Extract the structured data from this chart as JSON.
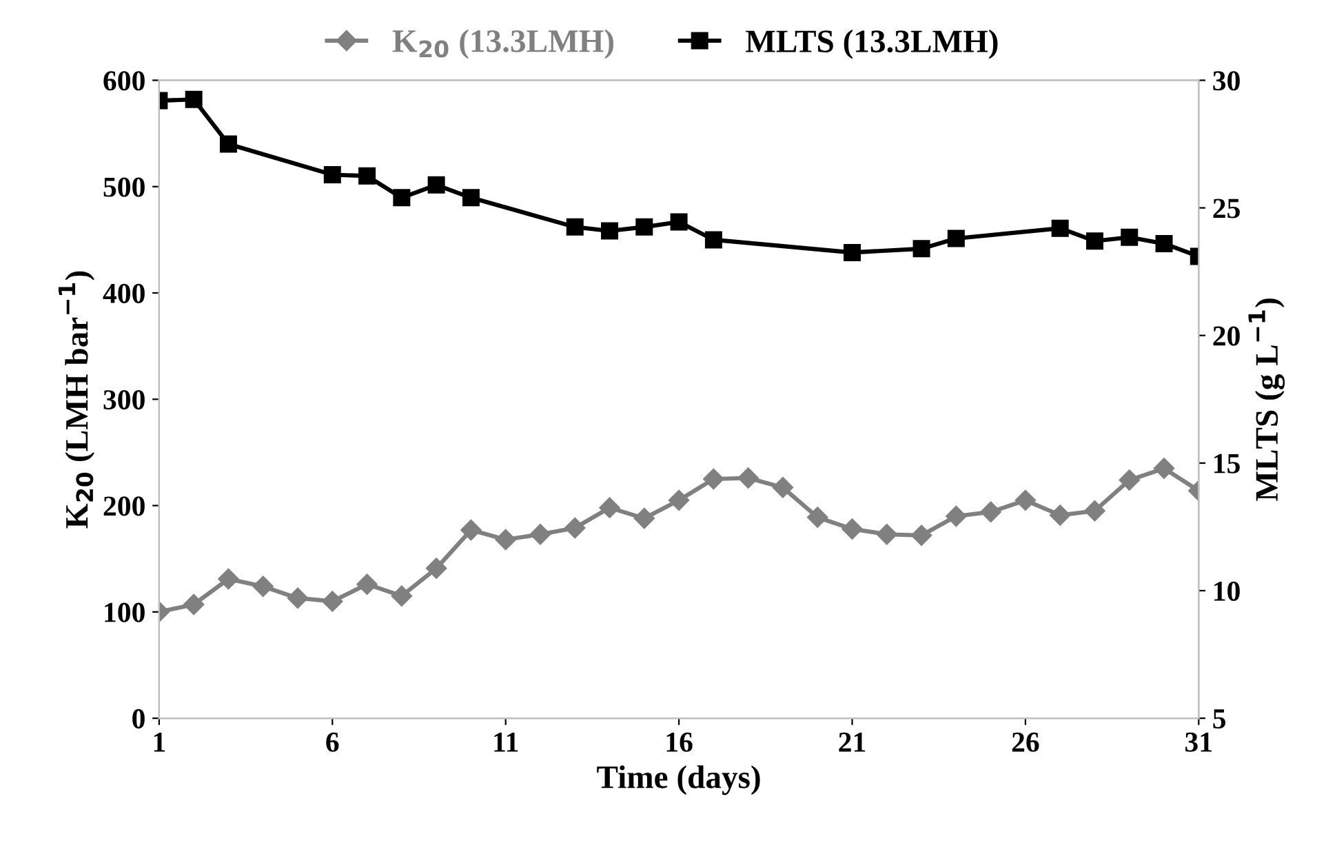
{
  "chart_data": {
    "type": "line",
    "xlabel": "Time (days)",
    "ylabel": "K$_{20}$ (LMH bar$^{−1}$)",
    "y2label": "MLTS (g L$^{−1}$)",
    "xlim": [
      1,
      31
    ],
    "xticks": [
      1,
      6,
      11,
      16,
      21,
      26,
      31
    ],
    "ylim": [
      0,
      600
    ],
    "yticks": [
      0,
      100,
      200,
      300,
      400,
      500,
      600
    ],
    "y2lim": [
      5,
      30
    ],
    "y2ticks": [
      5,
      10,
      15,
      20,
      25,
      30
    ],
    "grid": false,
    "legend": "top",
    "series": [
      {
        "name": "K$_{20}$ (13.3LMH)",
        "color": "#808080",
        "marker": "diamond",
        "x": [
          1,
          2,
          3,
          4,
          5,
          6,
          7,
          8,
          9,
          10,
          11,
          12,
          13,
          14,
          15,
          16,
          17,
          18,
          19,
          20,
          21,
          22,
          23,
          24,
          25,
          26,
          27,
          28,
          29,
          30,
          31
        ],
        "values": [
          100,
          107,
          131,
          124,
          113,
          110,
          126,
          115,
          141,
          177,
          168,
          173,
          179,
          198,
          188,
          205,
          225,
          226,
          217,
          189,
          178,
          173,
          172,
          190,
          194,
          205,
          191,
          195,
          224,
          235,
          214
        ]
      },
      {
        "name": "MLTS (13.3LMH)",
        "color": "#000000",
        "marker": "square",
        "axis": "y2",
        "x": [
          1,
          2,
          3,
          6,
          7,
          8,
          9,
          10,
          13,
          14,
          15,
          16,
          17,
          21,
          23,
          24,
          27,
          28,
          29,
          30,
          31
        ],
        "values": [
          29.2,
          29.25,
          27.5,
          26.3,
          26.25,
          25.4,
          25.9,
          25.4,
          24.25,
          24.1,
          24.25,
          24.45,
          23.75,
          23.25,
          23.4,
          23.8,
          24.2,
          23.7,
          23.85,
          23.6,
          23.1
        ]
      }
    ]
  }
}
